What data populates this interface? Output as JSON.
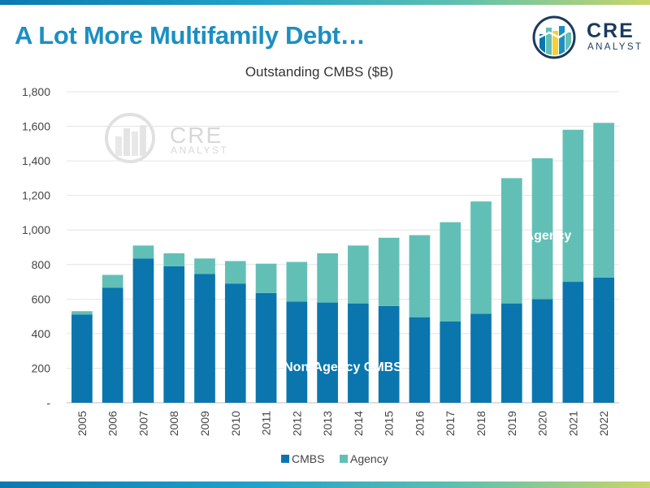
{
  "header": {
    "title": "A Lot More Multifamily Debt…"
  },
  "logo": {
    "main": "CRE",
    "sub": "ANALYST"
  },
  "watermark": {
    "main": "CRE",
    "sub": "ANALYST"
  },
  "chart_data": {
    "type": "bar",
    "stacked": true,
    "title": "Outstanding CMBS ($B)",
    "xlabel": "",
    "ylabel": "",
    "ylim": [
      0,
      1800
    ],
    "yticks": [
      0,
      200,
      400,
      600,
      800,
      1000,
      1200,
      1400,
      1600,
      1800
    ],
    "ytick_labels": [
      "-",
      "200",
      "400",
      "600",
      "800",
      "1,000",
      "1,200",
      "1,400",
      "1,600",
      "1,800"
    ],
    "grid": true,
    "legend_position": "bottom",
    "categories": [
      "2005",
      "2006",
      "2007",
      "2008",
      "2009",
      "2010",
      "2011",
      "2012",
      "2013",
      "2014",
      "2015",
      "2016",
      "2017",
      "2018",
      "2019",
      "2020",
      "2021",
      "2022"
    ],
    "series": [
      {
        "name": "CMBS",
        "color": "#0a76ad",
        "values": [
          510,
          665,
          835,
          790,
          745,
          690,
          635,
          585,
          580,
          575,
          560,
          495,
          470,
          515,
          575,
          600,
          700,
          725
        ]
      },
      {
        "name": "Agency",
        "color": "#62bfb6",
        "values": [
          20,
          75,
          75,
          75,
          90,
          130,
          170,
          230,
          285,
          335,
          395,
          475,
          575,
          650,
          725,
          815,
          880,
          895
        ]
      }
    ],
    "annotations": [
      {
        "text": "Non-Agency CMBS",
        "series": "CMBS"
      },
      {
        "text": "Agency",
        "series": "Agency"
      }
    ]
  }
}
